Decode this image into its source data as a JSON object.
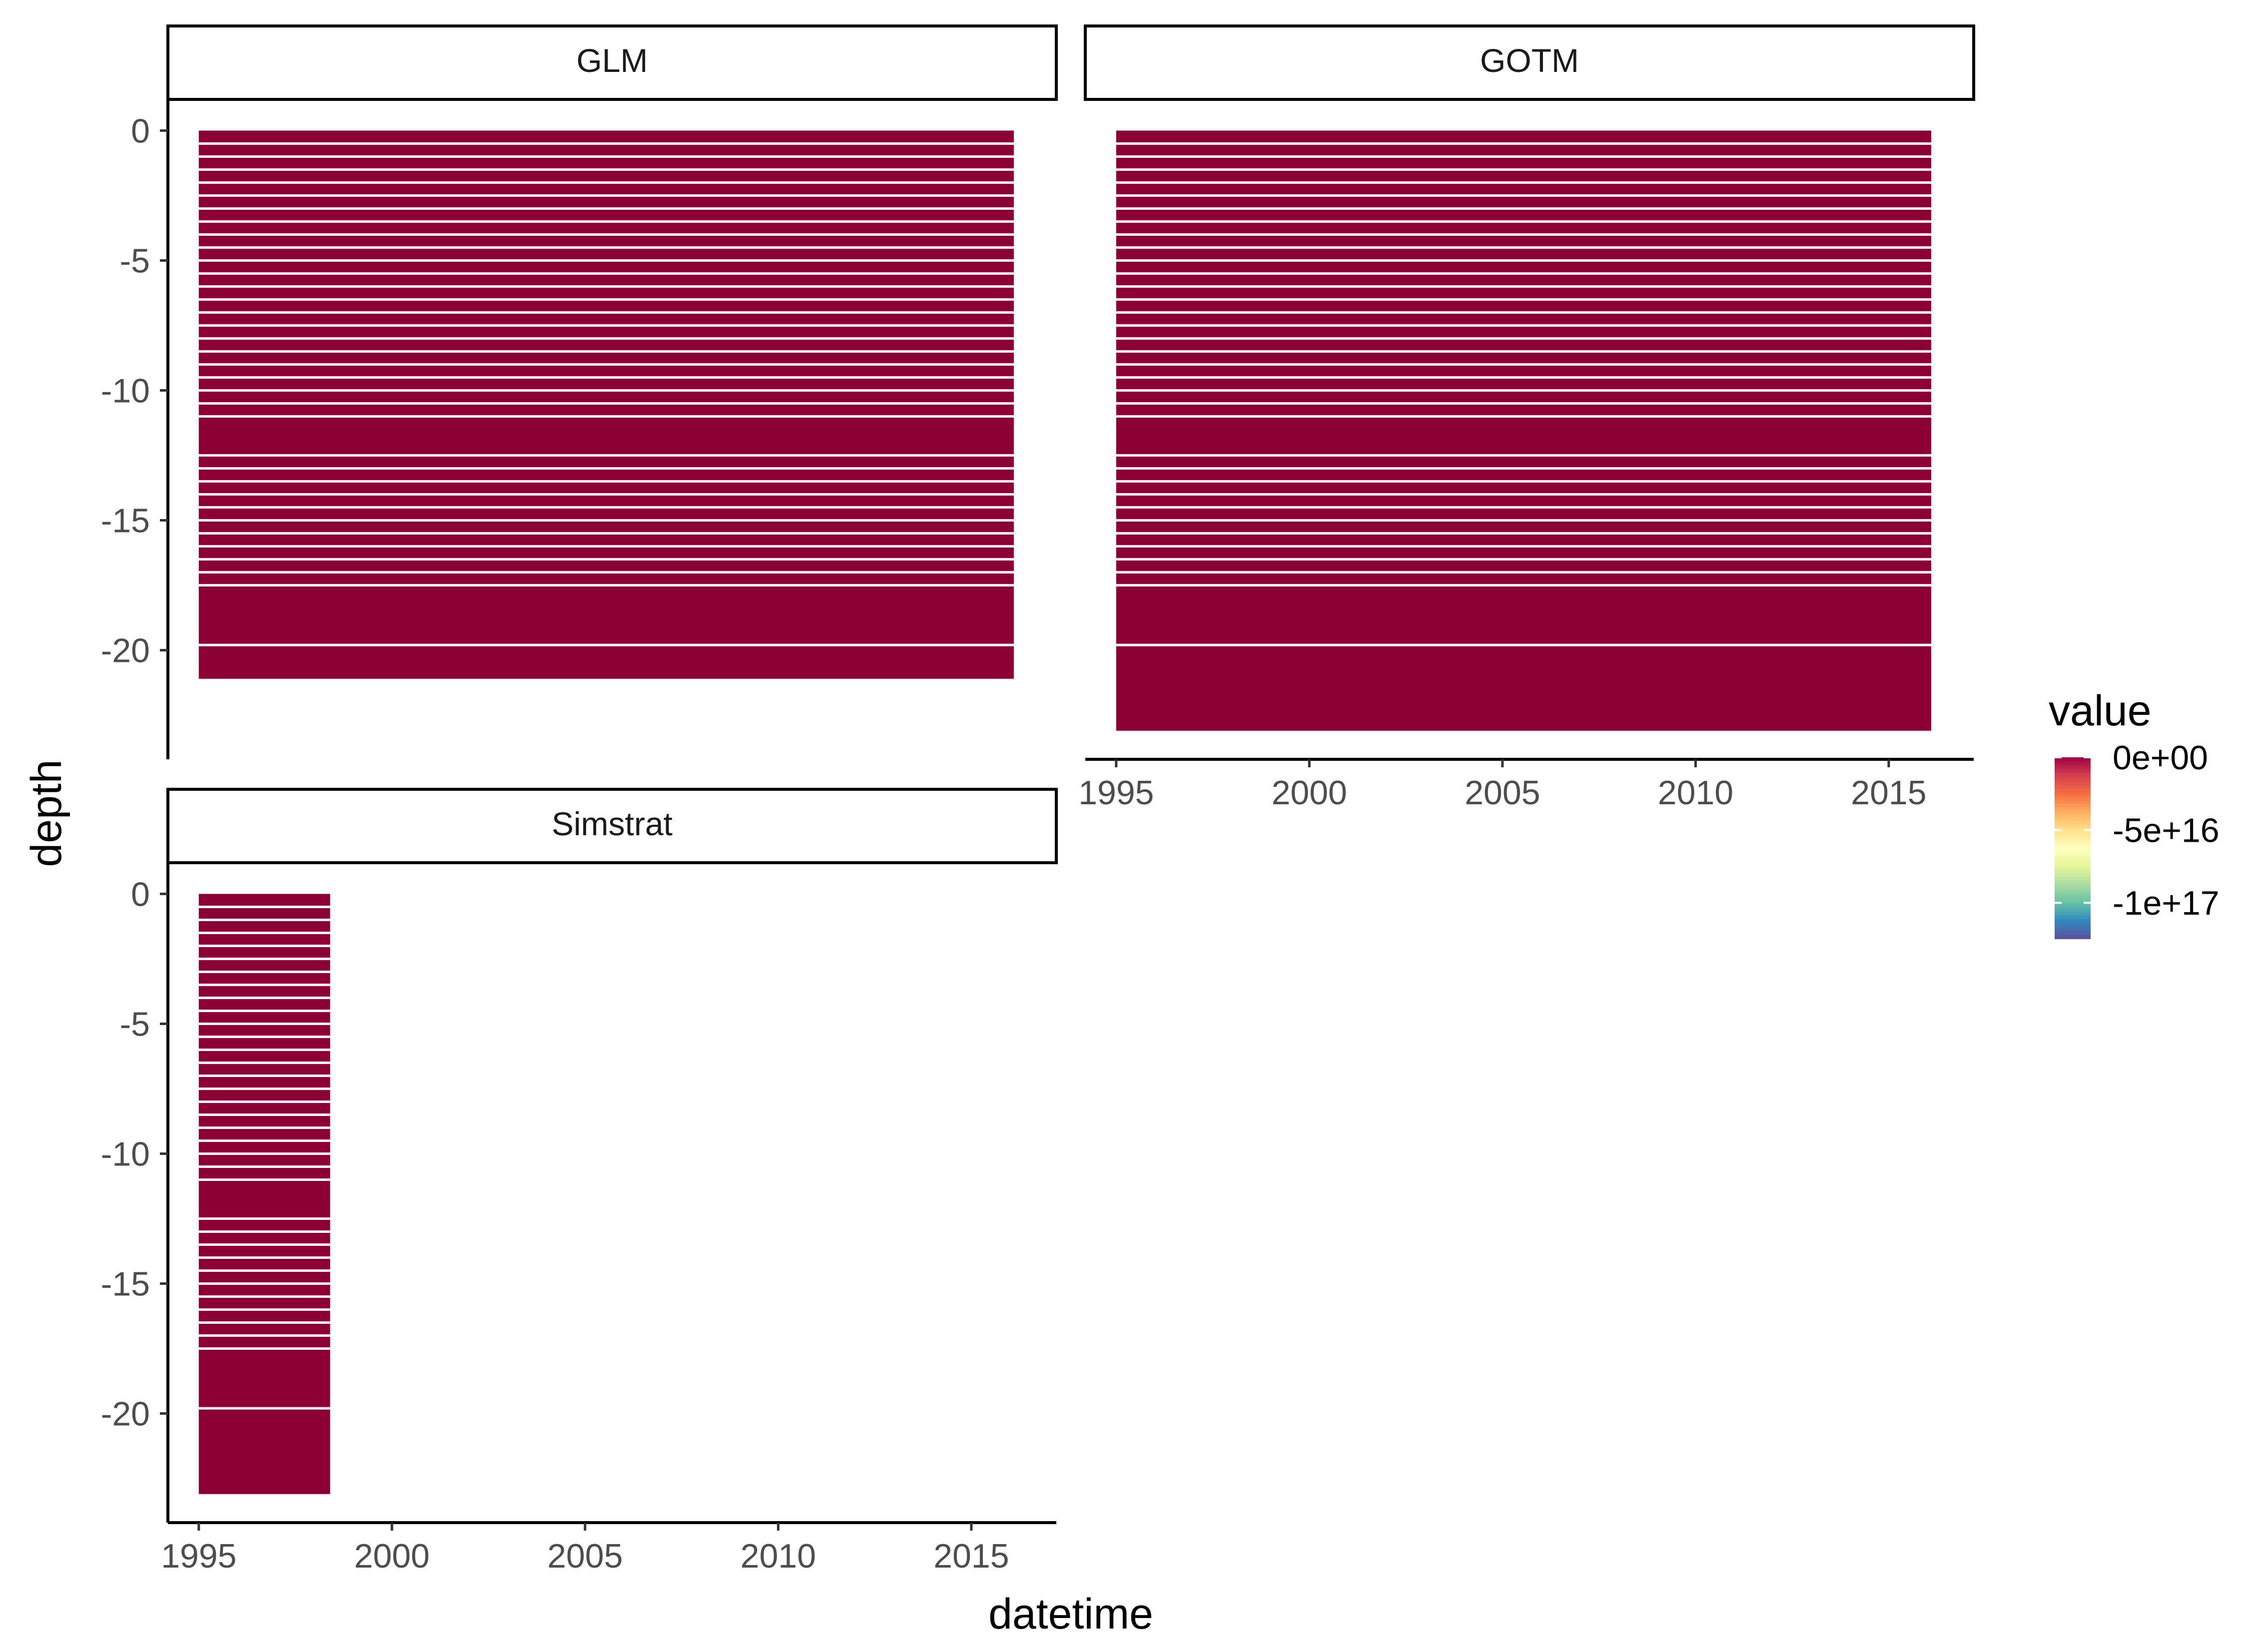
{
  "chart_data": {
    "type": "heatmap",
    "x_label": "datetime",
    "y_label": "depth",
    "x_ticks": [
      1995,
      2000,
      2005,
      2010,
      2015
    ],
    "y_ticks": [
      0,
      -5,
      -10,
      -15,
      -20
    ],
    "xlim": [
      1994.2,
      2017.2
    ],
    "ylim": [
      -24.2,
      1.2
    ],
    "panels": [
      {
        "strip": "GLM",
        "x_range": [
          1995.0,
          2016.1
        ],
        "depth_range": [
          0,
          -21.1
        ],
        "value": 0,
        "show_x_axis": false,
        "show_y_axis": true
      },
      {
        "strip": "GOTM",
        "x_range": [
          1995.0,
          2016.1
        ],
        "depth_range": [
          0,
          -23.1
        ],
        "value": 0,
        "show_x_axis": true,
        "show_y_axis": false
      },
      {
        "strip": "Simstrat",
        "x_range": [
          1995.0,
          1998.4
        ],
        "depth_range": [
          0,
          -23.1
        ],
        "value": 0,
        "show_x_axis": true,
        "show_y_axis": true
      }
    ],
    "legend": {
      "title": "value",
      "labels": [
        "0e+00",
        "-5e+16",
        "-1e+17"
      ],
      "label_values": [
        0,
        -5e+16,
        -1e+17
      ],
      "range": [
        -1.25e+17,
        0
      ],
      "colors": [
        "#5E4FA2",
        "#3288BD",
        "#66C2A5",
        "#ABDDA4",
        "#E6F598",
        "#FFFFBF",
        "#FEE08B",
        "#FDAE61",
        "#F46D43",
        "#D53E4F",
        "#9E0142"
      ],
      "position": "right"
    },
    "fill_color": "#8B0033"
  }
}
